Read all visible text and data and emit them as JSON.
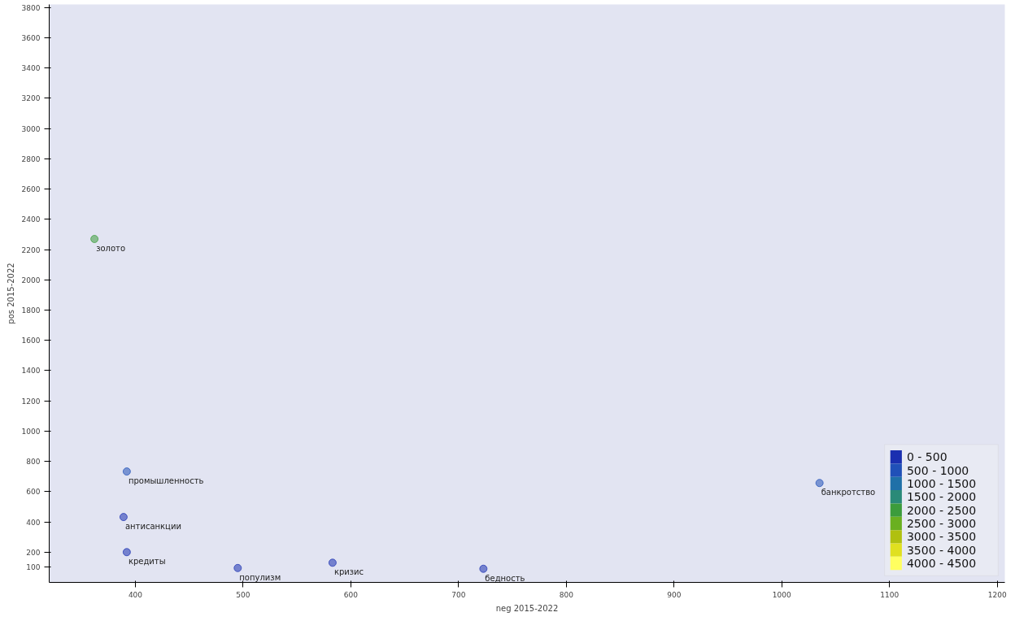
{
  "chart_data": {
    "type": "scatter",
    "xlabel": "neg 2015-2022",
    "ylabel": "pos 2015-2022",
    "xlim": [
      320,
      1207
    ],
    "ylim": [
      0,
      3820
    ],
    "xticks": [
      400,
      500,
      600,
      700,
      800,
      900,
      1000,
      1100,
      1200
    ],
    "yticks": [
      100,
      200,
      400,
      600,
      800,
      1000,
      1200,
      1400,
      1600,
      1800,
      2000,
      2200,
      2400,
      2600,
      2800,
      3000,
      3200,
      3400,
      3600,
      3800
    ],
    "grid": false,
    "legend": "bottom right",
    "marker": "circle",
    "series": [
      {
        "name": "0 - 500",
        "color": "#1a2fb0",
        "x": [
          389,
          392,
          495,
          583,
          723
        ],
        "values": [
          432,
          200,
          95,
          130,
          90
        ],
        "value_labels": [
          "антисанкции",
          "кредиты",
          "популизм",
          "кризис",
          "бедность"
        ]
      },
      {
        "name": "500 - 1000",
        "color": "#2050b8",
        "x": [
          392,
          1035
        ],
        "values": [
          733,
          657
        ],
        "value_labels": [
          "промышленность",
          "банкротство"
        ]
      },
      {
        "name": "1000 - 1500",
        "color": "#1f70a8"
      },
      {
        "name": "1500 - 2000",
        "color": "#2a8a78"
      },
      {
        "name": "2000 - 2500",
        "color": "#3c9c3c",
        "x": [
          362
        ],
        "values": [
          2270
        ],
        "value_labels": [
          "золото"
        ]
      },
      {
        "name": "2500 - 3000",
        "color": "#6ab020"
      },
      {
        "name": "3000 - 3500",
        "color": "#b0c010"
      },
      {
        "name": "3500 - 4000",
        "color": "#e0e020"
      },
      {
        "name": "4000 - 4500",
        "color": "#ffff60"
      }
    ]
  }
}
